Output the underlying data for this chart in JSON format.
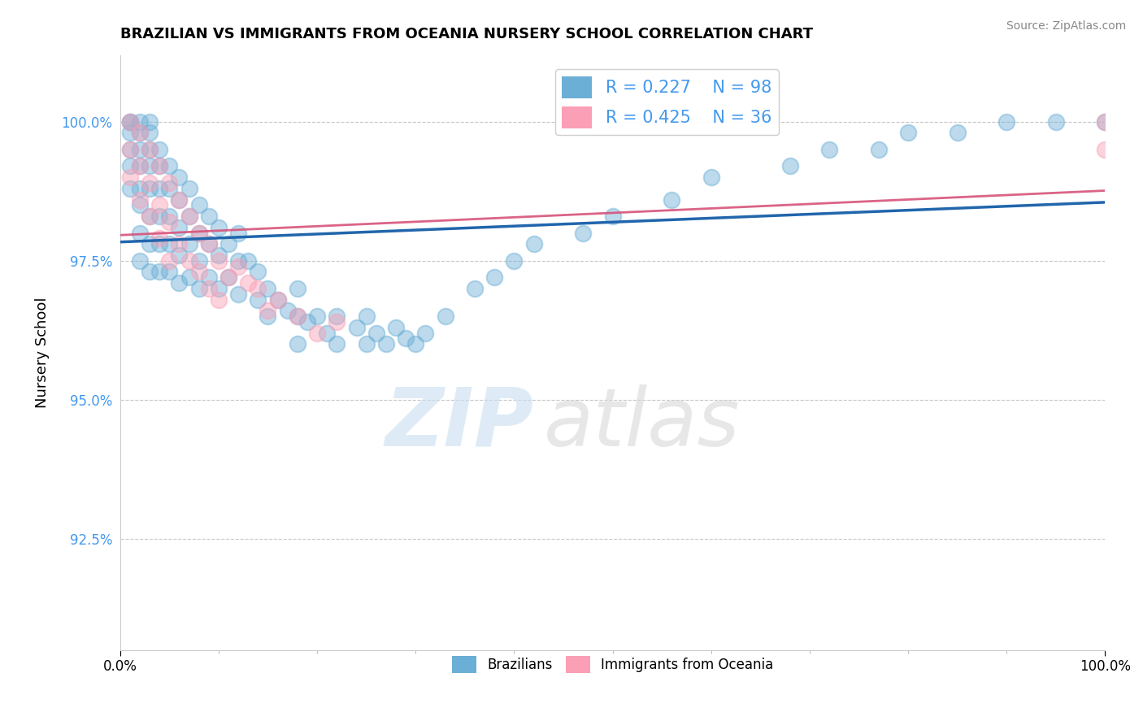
{
  "title": "BRAZILIAN VS IMMIGRANTS FROM OCEANIA NURSERY SCHOOL CORRELATION CHART",
  "source": "Source: ZipAtlas.com",
  "xlabel": "",
  "ylabel": "Nursery School",
  "xmin": 0.0,
  "xmax": 100.0,
  "ymin": 90.5,
  "ymax": 101.2,
  "yticks": [
    92.5,
    95.0,
    97.5,
    100.0
  ],
  "ytick_labels": [
    "92.5%",
    "95.0%",
    "97.5%",
    "100.0%"
  ],
  "xtick_labels": [
    "0.0%",
    "100.0%"
  ],
  "blue_color": "#6baed6",
  "pink_color": "#fa9fb5",
  "blue_line_color": "#2166ac",
  "pink_line_color": "#d6537a",
  "legend_r_blue": "R = 0.227",
  "legend_n_blue": "N = 98",
  "legend_r_pink": "R = 0.425",
  "legend_n_pink": "N = 36",
  "blue_x": [
    1,
    1,
    1,
    1,
    1,
    1,
    2,
    2,
    2,
    2,
    2,
    2,
    2,
    2,
    3,
    3,
    3,
    3,
    3,
    3,
    3,
    3,
    4,
    4,
    4,
    4,
    4,
    4,
    5,
    5,
    5,
    5,
    5,
    6,
    6,
    6,
    6,
    6,
    7,
    7,
    7,
    7,
    8,
    8,
    8,
    8,
    9,
    9,
    9,
    10,
    10,
    10,
    11,
    11,
    12,
    12,
    12,
    13,
    14,
    14,
    15,
    15,
    16,
    17,
    18,
    18,
    18,
    19,
    20,
    21,
    22,
    22,
    24,
    25,
    25,
    26,
    27,
    28,
    29,
    30,
    31,
    33,
    36,
    38,
    40,
    42,
    47,
    50,
    56,
    60,
    68,
    72,
    77,
    80,
    85,
    90,
    95,
    100
  ],
  "blue_y": [
    100.0,
    100.0,
    99.8,
    99.5,
    99.2,
    98.8,
    100.0,
    99.8,
    99.5,
    99.2,
    98.8,
    98.5,
    98.0,
    97.5,
    100.0,
    99.8,
    99.5,
    99.2,
    98.8,
    98.3,
    97.8,
    97.3,
    99.5,
    99.2,
    98.8,
    98.3,
    97.8,
    97.3,
    99.2,
    98.8,
    98.3,
    97.8,
    97.3,
    99.0,
    98.6,
    98.1,
    97.6,
    97.1,
    98.8,
    98.3,
    97.8,
    97.2,
    98.5,
    98.0,
    97.5,
    97.0,
    98.3,
    97.8,
    97.2,
    98.1,
    97.6,
    97.0,
    97.8,
    97.2,
    98.0,
    97.5,
    96.9,
    97.5,
    97.3,
    96.8,
    97.0,
    96.5,
    96.8,
    96.6,
    97.0,
    96.5,
    96.0,
    96.4,
    96.5,
    96.2,
    96.5,
    96.0,
    96.3,
    96.5,
    96.0,
    96.2,
    96.0,
    96.3,
    96.1,
    96.0,
    96.2,
    96.5,
    97.0,
    97.2,
    97.5,
    97.8,
    98.0,
    98.3,
    98.6,
    99.0,
    99.2,
    99.5,
    99.5,
    99.8,
    99.8,
    100.0,
    100.0,
    100.0
  ],
  "pink_x": [
    1,
    1,
    1,
    2,
    2,
    2,
    3,
    3,
    3,
    4,
    4,
    4,
    5,
    5,
    5,
    6,
    6,
    7,
    7,
    8,
    8,
    9,
    9,
    10,
    10,
    11,
    12,
    13,
    14,
    15,
    16,
    18,
    20,
    22,
    100,
    100
  ],
  "pink_y": [
    100.0,
    99.5,
    99.0,
    99.8,
    99.2,
    98.6,
    99.5,
    98.9,
    98.3,
    99.2,
    98.5,
    97.9,
    98.9,
    98.2,
    97.5,
    98.6,
    97.8,
    98.3,
    97.5,
    98.0,
    97.3,
    97.8,
    97.0,
    97.5,
    96.8,
    97.2,
    97.4,
    97.1,
    97.0,
    96.6,
    96.8,
    96.5,
    96.2,
    96.4,
    100.0,
    99.5
  ],
  "watermark_zip": "ZIP",
  "watermark_atlas": "atlas",
  "background_color": "#ffffff",
  "grid_color": "#c8c8c8"
}
